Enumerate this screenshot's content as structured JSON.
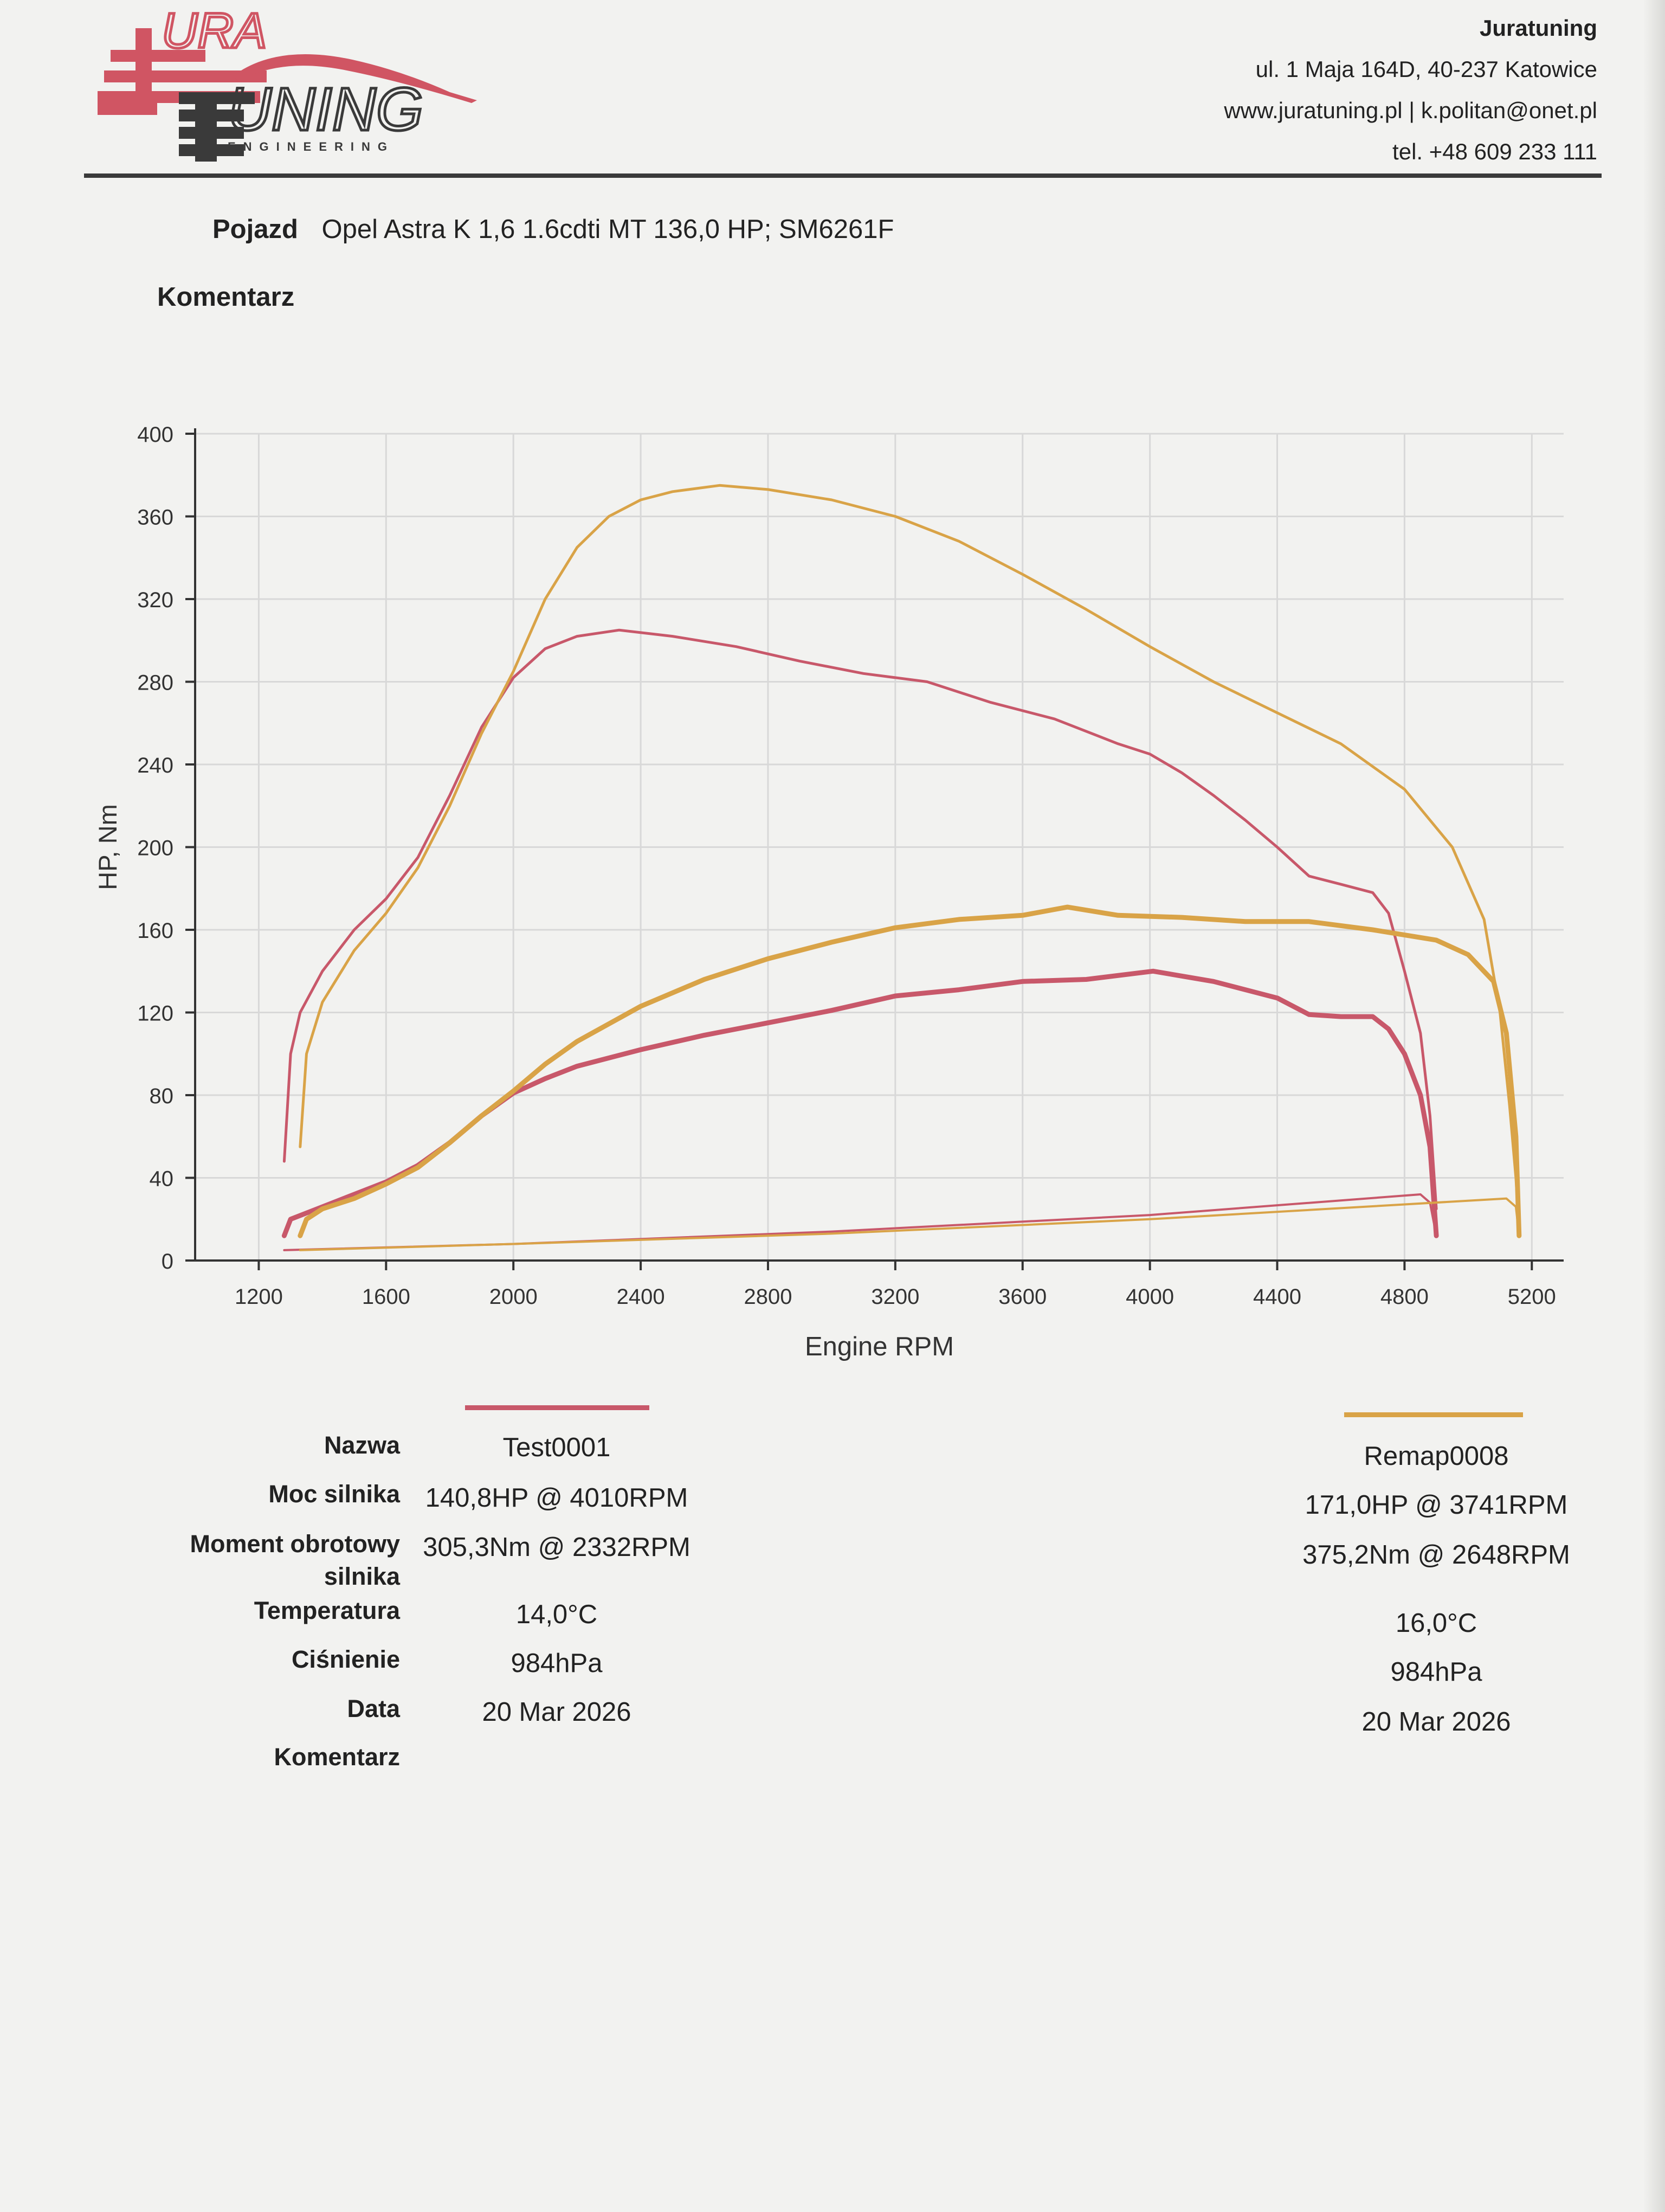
{
  "company": {
    "name": "Juratuning",
    "address": "ul. 1 Maja 164D, 40-237 Katowice",
    "web_email": "www.juratuning.pl | k.politan@onet.pl",
    "phone": "tel. +48 609 233 111"
  },
  "logo": {
    "top": "URA",
    "main": "UNING",
    "sub": "ENGINEERING"
  },
  "header": {
    "vehicle_label": "Pojazd",
    "vehicle_value": "Opel Astra K 1,6 1.6cdti MT 136,0 HP; SM6261F",
    "comment_label": "Komentarz"
  },
  "colors": {
    "test": "#c8586a",
    "remap": "#d9a347",
    "grid": "#d8d8d8",
    "axis": "#333333"
  },
  "chart_data": {
    "type": "line",
    "xlabel": "Engine RPM",
    "ylabel": "HP, Nm",
    "xlim": [
      1000,
      5300
    ],
    "ylim": [
      0,
      400
    ],
    "xticks": [
      1200,
      1600,
      2000,
      2400,
      2800,
      3200,
      3600,
      4000,
      4400,
      4800,
      5200
    ],
    "yticks": [
      0,
      40,
      80,
      120,
      160,
      200,
      240,
      280,
      320,
      360,
      400
    ],
    "grid": true,
    "series": [
      {
        "name": "Test0001",
        "kind": "torque",
        "color": "#c8586a",
        "x": [
          1280,
          1300,
          1330,
          1400,
          1500,
          1600,
          1700,
          1800,
          1900,
          2000,
          2100,
          2200,
          2332,
          2500,
          2700,
          2900,
          3100,
          3300,
          3500,
          3700,
          3900,
          4000,
          4100,
          4200,
          4300,
          4400,
          4500,
          4600,
          4700,
          4750,
          4800,
          4850,
          4880,
          4900
        ],
        "y": [
          48,
          100,
          120,
          140,
          160,
          175,
          195,
          225,
          258,
          282,
          296,
          302,
          305,
          302,
          297,
          290,
          284,
          280,
          270,
          262,
          250,
          245,
          236,
          225,
          213,
          200,
          186,
          182,
          178,
          168,
          140,
          110,
          70,
          25
        ]
      },
      {
        "name": "Remap0008",
        "kind": "torque",
        "color": "#d9a347",
        "x": [
          1330,
          1350,
          1400,
          1500,
          1600,
          1700,
          1800,
          1900,
          2000,
          2100,
          2200,
          2300,
          2400,
          2500,
          2648,
          2800,
          3000,
          3200,
          3400,
          3600,
          3800,
          4000,
          4200,
          4400,
          4600,
          4800,
          4950,
          5050,
          5100,
          5130,
          5150,
          5160
        ],
        "y": [
          55,
          100,
          125,
          150,
          168,
          190,
          220,
          255,
          285,
          320,
          345,
          360,
          368,
          372,
          375,
          373,
          368,
          360,
          348,
          332,
          315,
          297,
          280,
          265,
          250,
          228,
          200,
          165,
          120,
          75,
          40,
          15
        ]
      },
      {
        "name": "Test0001",
        "kind": "power",
        "color": "#c8586a",
        "x": [
          1280,
          1300,
          1400,
          1500,
          1600,
          1700,
          1800,
          1900,
          2000,
          2100,
          2200,
          2400,
          2600,
          2800,
          3000,
          3200,
          3400,
          3600,
          3800,
          4010,
          4200,
          4400,
          4500,
          4600,
          4700,
          4750,
          4800,
          4850,
          4880,
          4900
        ],
        "y": [
          12,
          20,
          26,
          32,
          38,
          46,
          57,
          70,
          81,
          88,
          94,
          102,
          109,
          115,
          121,
          128,
          131,
          135,
          136,
          140,
          135,
          127,
          119,
          118,
          118,
          112,
          100,
          80,
          55,
          12
        ]
      },
      {
        "name": "Remap0008",
        "kind": "power",
        "color": "#d9a347",
        "x": [
          1330,
          1350,
          1400,
          1500,
          1600,
          1700,
          1800,
          1900,
          2000,
          2100,
          2200,
          2400,
          2600,
          2800,
          3000,
          3200,
          3400,
          3600,
          3741,
          3900,
          4100,
          4300,
          4500,
          4700,
          4900,
          5000,
          5080,
          5120,
          5150,
          5160
        ],
        "y": [
          12,
          20,
          25,
          30,
          37,
          45,
          57,
          70,
          82,
          95,
          106,
          123,
          136,
          146,
          154,
          161,
          165,
          167,
          171,
          167,
          166,
          164,
          164,
          160,
          155,
          148,
          135,
          110,
          60,
          12
        ]
      },
      {
        "name": "Test0001",
        "kind": "loss",
        "color": "#c8586a",
        "x": [
          1280,
          2000,
          3000,
          4000,
          4850,
          4880,
          4900
        ],
        "y": [
          5,
          8,
          14,
          22,
          32,
          28,
          12
        ]
      },
      {
        "name": "Remap0008",
        "kind": "loss",
        "color": "#d9a347",
        "x": [
          1330,
          2000,
          3000,
          4000,
          5120,
          5150,
          5160
        ],
        "y": [
          5,
          8,
          13,
          20,
          30,
          26,
          12
        ]
      }
    ]
  },
  "results": {
    "labels": [
      "Nazwa",
      "Moc silnika",
      "Moment obrotowy silnika",
      "Temperatura",
      "Ciśnienie",
      "Data",
      "Komentarz"
    ],
    "test": [
      "Test0001",
      "140,8HP @ 4010RPM",
      "305,3Nm @ 2332RPM",
      "14,0°C",
      "984hPa",
      "20 Mar 2026"
    ],
    "remap": [
      "Remap0008",
      "171,0HP @ 3741RPM",
      "375,2Nm @ 2648RPM",
      "16,0°C",
      "984hPa",
      "20 Mar 2026"
    ]
  }
}
